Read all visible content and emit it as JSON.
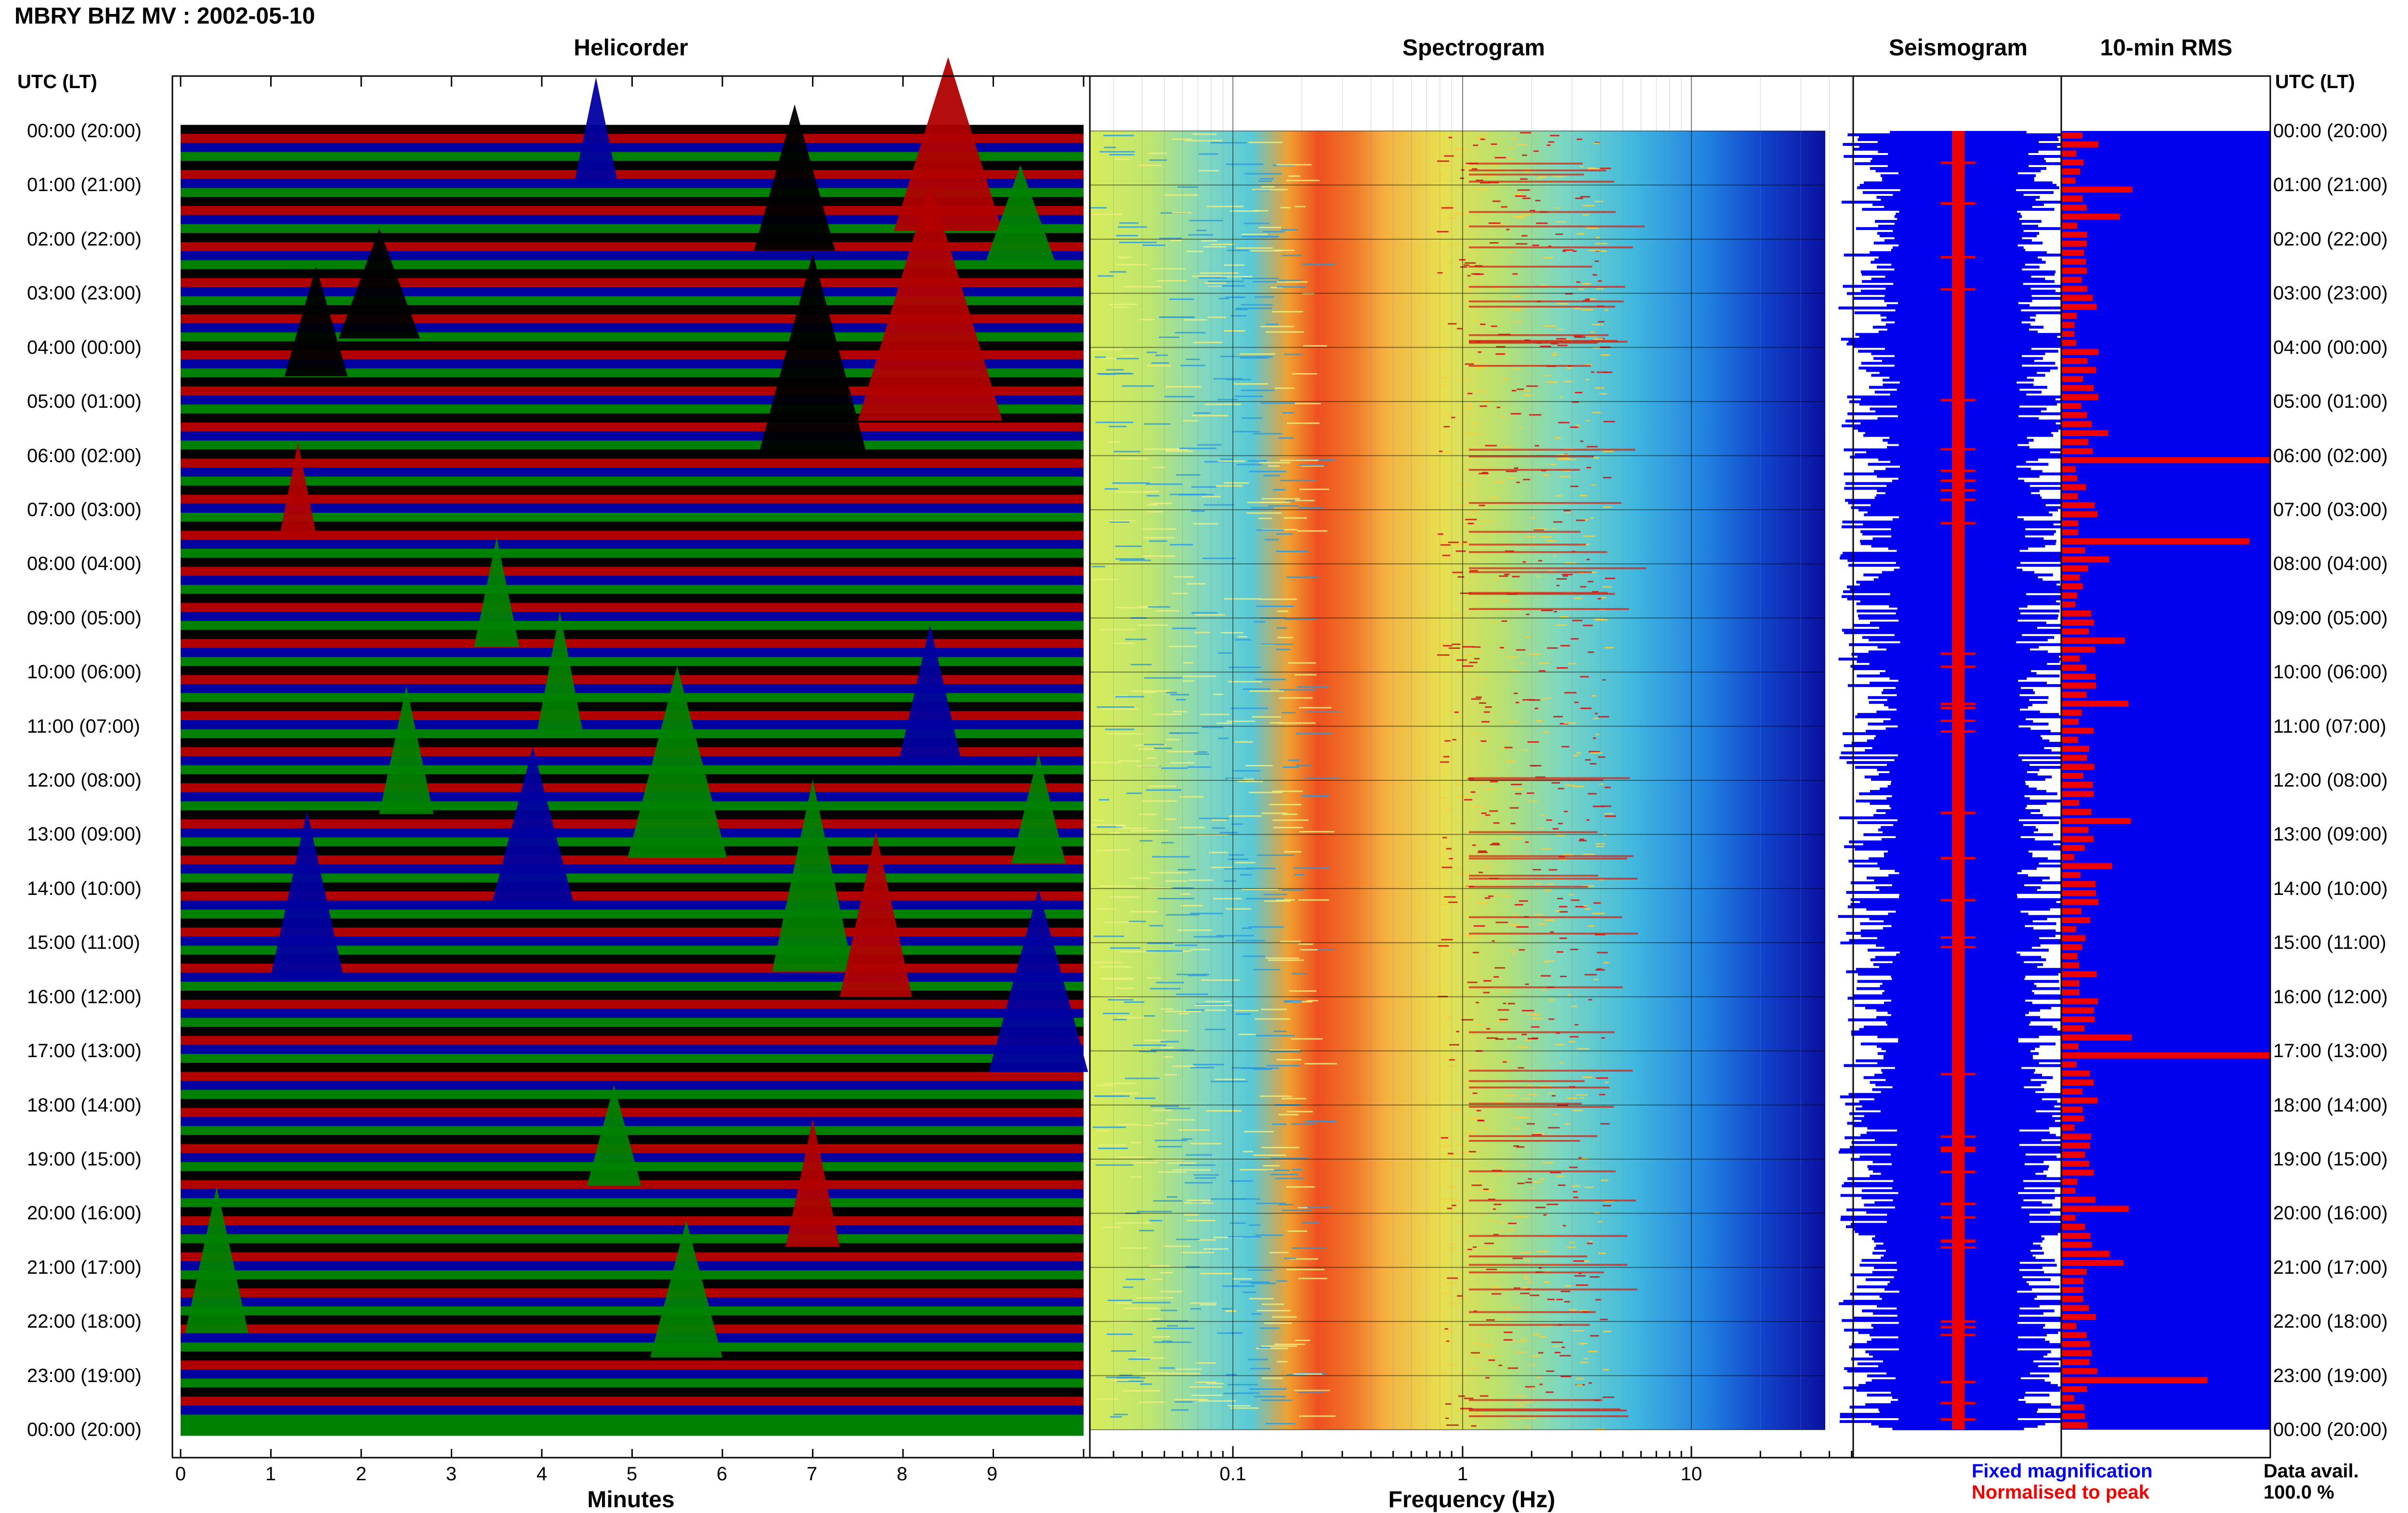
{
  "title": "MBRY BHZ MV : 2002-05-10",
  "panels": {
    "helicorder": "Helicorder",
    "spectrogram": "Spectrogram",
    "seismogram": "Seismogram",
    "rms": "10-min RMS"
  },
  "axis_headers": {
    "left": "UTC (LT)",
    "right": "UTC (LT)"
  },
  "time_labels": [
    "00:00 (20:00)",
    "01:00 (21:00)",
    "02:00 (22:00)",
    "03:00 (23:00)",
    "04:00 (00:00)",
    "05:00 (01:00)",
    "06:00 (02:00)",
    "07:00 (03:00)",
    "08:00 (04:00)",
    "09:00 (05:00)",
    "10:00 (06:00)",
    "11:00 (07:00)",
    "12:00 (08:00)",
    "13:00 (09:00)",
    "14:00 (10:00)",
    "15:00 (11:00)",
    "16:00 (12:00)",
    "17:00 (13:00)",
    "18:00 (14:00)",
    "19:00 (15:00)",
    "20:00 (16:00)",
    "21:00 (17:00)",
    "22:00 (18:00)",
    "23:00 (19:00)",
    "00:00 (20:00)"
  ],
  "legend": {
    "fixed": "Fixed magnification",
    "normalised": "Normalised to peak",
    "fixed_color": "#0000ee",
    "normalised_color": "#ee0000"
  },
  "data_avail": {
    "label": "Data avail.",
    "value": "100.0 %"
  },
  "chart_data": [
    {
      "type": "line",
      "title": "Helicorder",
      "xlabel": "Minutes",
      "ylabel": "UTC (LT)",
      "xlim": [
        0,
        10
      ],
      "xticks": [
        "0",
        "1",
        "2",
        "3",
        "4",
        "5",
        "6",
        "7",
        "8",
        "9"
      ],
      "trace_colors": [
        "#000000",
        "#b00000",
        "#0000a0",
        "#008000"
      ],
      "traces_per_hour": 6,
      "note_events": "large events around 01:00-02:30 at 6-8 min, 04:00-07:00 at 8-9.5 min, 12:00-15:00 at 4-7 min"
    },
    {
      "type": "heatmap",
      "title": "Spectrogram",
      "xlabel": "Frequency (Hz)",
      "xscale": "log",
      "xlim": [
        0.02,
        40
      ],
      "xticks": [
        "0.1",
        "1",
        "10"
      ],
      "peak_band_hz": [
        0.25,
        0.5
      ],
      "colormap": "jet"
    },
    {
      "type": "line",
      "title": "Seismogram",
      "series": [
        {
          "name": "Fixed magnification",
          "color": "#0000ee"
        },
        {
          "name": "Normalised to peak",
          "color": "#ee0000"
        }
      ]
    },
    {
      "type": "bar",
      "title": "10-min RMS",
      "orientation": "horizontal",
      "bars_per_hour": 6,
      "relative_peaks": [
        {
          "time": "06:00",
          "value": 1.0
        },
        {
          "time": "07:30",
          "value": 0.9
        },
        {
          "time": "17:00",
          "value": 1.0
        },
        {
          "time": "23:00",
          "value": 0.7
        },
        {
          "time": "03:00",
          "value": 0.15
        }
      ]
    }
  ]
}
